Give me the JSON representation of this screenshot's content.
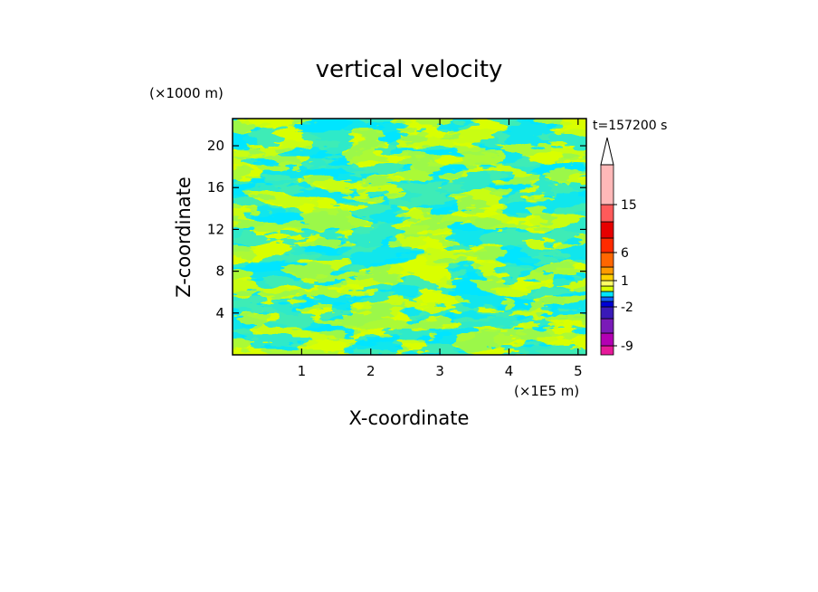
{
  "chart_data": {
    "type": "heatmap",
    "title": "vertical velocity",
    "xlabel": "X-coordinate",
    "ylabel": "Z-coordinate",
    "x_unit": "(×1E5 m)",
    "y_unit": "(×1000 m)",
    "time_label": "t=157200 s",
    "xlim": [
      0,
      5.12
    ],
    "ylim": [
      0,
      22.6
    ],
    "x_ticks": [
      "1",
      "2",
      "3",
      "4",
      "5"
    ],
    "x_tick_values": [
      1,
      2,
      3,
      4,
      5
    ],
    "y_ticks": [
      "4",
      "8",
      "12",
      "16",
      "20"
    ],
    "y_tick_values": [
      4,
      8,
      12,
      16,
      20
    ],
    "field_colors": {
      "negative": "#00e5ff",
      "positive": "#d9ff00"
    },
    "colorbar": {
      "labels": [
        "15",
        "6",
        "1",
        "-2",
        "-9"
      ],
      "label_values": [
        15,
        6,
        1,
        -2,
        -9
      ],
      "levels_bottom_to_top": [
        -12,
        -9,
        -6,
        -3,
        -2,
        -1,
        -0.5,
        0,
        0.5,
        1,
        2,
        3,
        6,
        9,
        12,
        15,
        20
      ],
      "colors_bottom_to_top": [
        "#e6199a",
        "#b300b3",
        "#7a1ab8",
        "#3a1ab8",
        "#0000d6",
        "#1060ff",
        "#00e5ff",
        "#d9ff00",
        "#ffff66",
        "#ffd000",
        "#ff9a00",
        "#ff6600",
        "#ff2a00",
        "#e60000",
        "#ff5a5a",
        "#ffb8b8"
      ],
      "extend": "max"
    }
  }
}
